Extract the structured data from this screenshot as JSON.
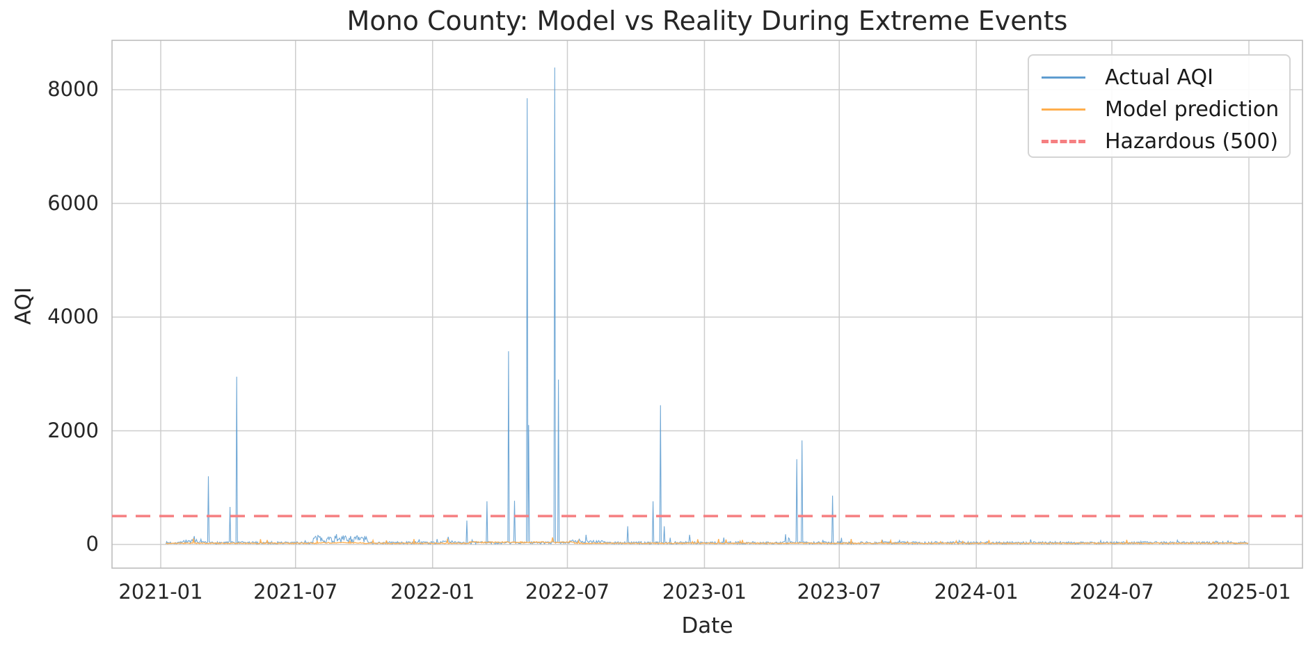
{
  "figure": {
    "title": "Mono County: Model vs Reality During Extreme Events",
    "xlabel": "Date",
    "ylabel": "AQI",
    "background_color": "#ffffff",
    "text_color": "#262626",
    "grid_color": "#cdcdcd",
    "spine_color": "#bdbdbd"
  },
  "legend": {
    "position": "upper right",
    "items": [
      {
        "label": "Actual AQI",
        "color": "#5f9dd0",
        "dash": false,
        "sample_thickness": 3
      },
      {
        "label": "Model prediction",
        "color": "#ffae4d",
        "dash": false,
        "sample_thickness": 3
      },
      {
        "label": "Hazardous (500)",
        "color": "#f57f81",
        "dash": true,
        "sample_thickness": 5
      }
    ]
  },
  "chart_data": {
    "type": "line",
    "title": "Mono County: Model vs Reality During Extreme Events",
    "xlabel": "Date",
    "ylabel": "AQI",
    "grid": true,
    "legend_position": "upper right",
    "x_ticks": [
      "2021-01",
      "2021-07",
      "2022-01",
      "2022-07",
      "2023-01",
      "2023-07",
      "2024-01",
      "2024-07",
      "2025-01"
    ],
    "y_ticks": [
      0,
      2000,
      4000,
      6000,
      8000
    ],
    "ylim": [
      -420,
      8880
    ],
    "x_range_dates": [
      "2021-01-08",
      "2024-12-31"
    ],
    "hazardous_threshold": 500,
    "series": [
      {
        "name": "Actual AQI",
        "color": "#5f9dd0",
        "line_width": 1.1,
        "baseline": {
          "level": 30,
          "jitter": 22
        },
        "elevated_periods": [
          {
            "start": "2021-01-28",
            "end": "2021-02-18",
            "level": 55,
            "jitter": 35
          },
          {
            "start": "2021-07-25",
            "end": "2021-10-05",
            "level": 95,
            "jitter": 65
          },
          {
            "start": "2022-01-08",
            "end": "2022-02-08",
            "level": 42,
            "jitter": 26
          },
          {
            "start": "2022-07-05",
            "end": "2022-08-20",
            "level": 52,
            "jitter": 30
          }
        ],
        "spikes": [
          [
            "2021-03-06",
            1200
          ],
          [
            "2021-04-04",
            660
          ],
          [
            "2021-04-13",
            2950
          ],
          [
            "2022-02-16",
            420
          ],
          [
            "2022-03-15",
            760
          ],
          [
            "2022-04-13",
            3400
          ],
          [
            "2022-04-21",
            770
          ],
          [
            "2022-05-08",
            7850
          ],
          [
            "2022-05-10",
            2100
          ],
          [
            "2022-06-14",
            8390
          ],
          [
            "2022-06-19",
            2900
          ],
          [
            "2022-07-26",
            170
          ],
          [
            "2022-09-20",
            320
          ],
          [
            "2022-10-24",
            760
          ],
          [
            "2022-11-03",
            2450
          ],
          [
            "2022-11-08",
            320
          ],
          [
            "2022-12-12",
            170
          ],
          [
            "2023-04-20",
            180
          ],
          [
            "2023-05-05",
            1500
          ],
          [
            "2023-05-12",
            1830
          ],
          [
            "2023-06-22",
            860
          ]
        ]
      },
      {
        "name": "Model prediction",
        "color": "#ffae4d",
        "line_width": 1.4,
        "baseline": {
          "level": 22,
          "jitter": 8
        },
        "elevated_periods": [
          {
            "start": "2021-08-01",
            "end": "2021-09-30",
            "level": 30,
            "jitter": 9
          },
          {
            "start": "2022-02-20",
            "end": "2022-07-10",
            "level": 38,
            "jitter": 12
          }
        ],
        "spikes": []
      },
      {
        "name": "Hazardous (500)",
        "type": "hline",
        "value": 500,
        "color": "#f57f81",
        "line_width": 3.5,
        "dash": [
          21,
          13
        ]
      }
    ]
  }
}
